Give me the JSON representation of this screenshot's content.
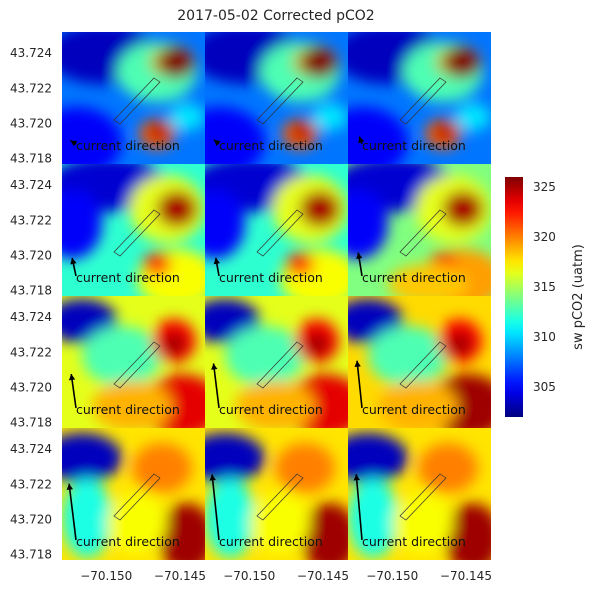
{
  "chart_data": {
    "type": "heatmap",
    "title": "2017-05-02 Corrected pCO2",
    "rows": 4,
    "cols": 3,
    "xlim": [
      -70.153,
      -70.1433
    ],
    "ylim": [
      43.7177,
      43.7252
    ],
    "x_ticks": [
      "−70.150",
      "−70.145"
    ],
    "x_tick_values": [
      -70.15,
      -70.145
    ],
    "y_ticks": [
      "43.724",
      "43.722",
      "43.720",
      "43.718"
    ],
    "y_tick_values": [
      43.724,
      43.722,
      43.72,
      43.718
    ],
    "colorbar": {
      "label": "sw pCO2 (uatm)",
      "ticks": [
        "325",
        "320",
        "315",
        "310",
        "305"
      ],
      "tick_values": [
        325,
        320,
        315,
        310,
        305
      ],
      "vmin": 302,
      "vmax": 326,
      "colormap": "jet"
    },
    "annotation": "current direction",
    "grid": false,
    "panels": [
      {
        "arrow_angle_deg": 148,
        "arrow_len": 0.05,
        "field": "early"
      },
      {
        "arrow_angle_deg": 140,
        "arrow_len": 0.05,
        "field": "early"
      },
      {
        "arrow_angle_deg": 110,
        "arrow_len": 0.06,
        "field": "early"
      },
      {
        "arrow_angle_deg": 102,
        "arrow_len": 0.14,
        "field": "mid1"
      },
      {
        "arrow_angle_deg": 100,
        "arrow_len": 0.14,
        "field": "mid1"
      },
      {
        "arrow_angle_deg": 99,
        "arrow_len": 0.18,
        "field": "mid1b"
      },
      {
        "arrow_angle_deg": 98,
        "arrow_len": 0.26,
        "field": "mid2"
      },
      {
        "arrow_angle_deg": 97,
        "arrow_len": 0.34,
        "field": "mid2"
      },
      {
        "arrow_angle_deg": 96,
        "arrow_len": 0.36,
        "field": "mid2b"
      },
      {
        "arrow_angle_deg": 97,
        "arrow_len": 0.43,
        "field": "late"
      },
      {
        "arrow_angle_deg": 96,
        "arrow_len": 0.5,
        "field": "late"
      },
      {
        "arrow_angle_deg": 95,
        "arrow_len": 0.5,
        "field": "late"
      }
    ]
  }
}
